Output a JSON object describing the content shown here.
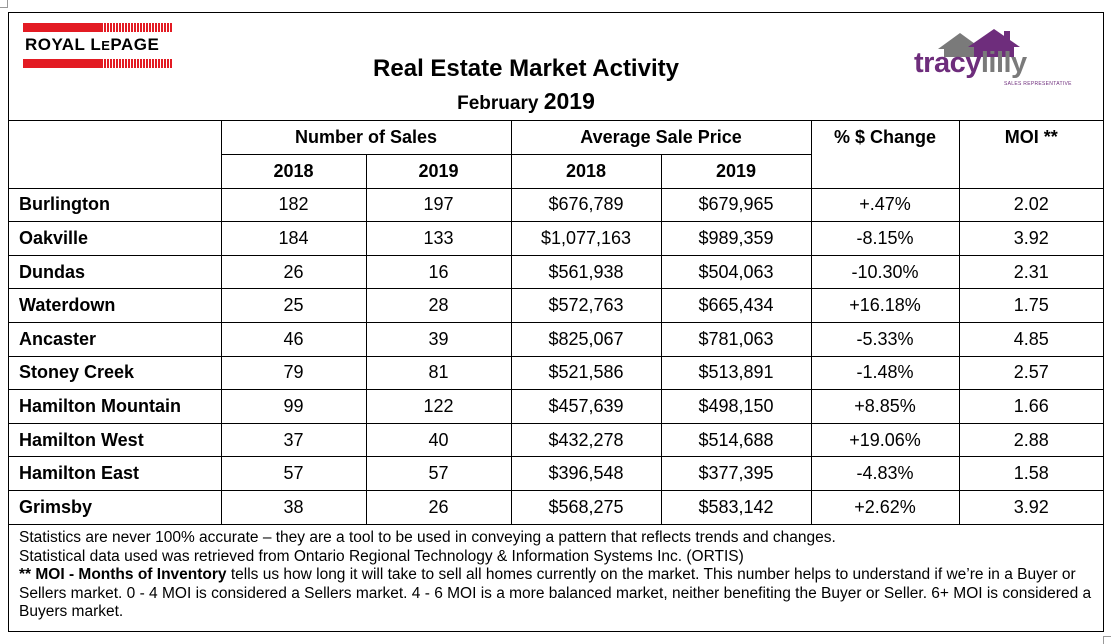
{
  "header": {
    "brand_left": {
      "name_main": "ROYAL L",
      "name_small": "E",
      "name_end": "PAGE"
    },
    "title": "Real Estate Market Activity",
    "subtitle_month": "February",
    "subtitle_year": "2019",
    "brand_right": {
      "part1": "tracy",
      "part2": "lilly",
      "tagline": "SALES REPRESENTATIVE"
    }
  },
  "table": {
    "group_headers": [
      "Number of Sales",
      "Average Sale Price",
      "% $ Change",
      "MOI **"
    ],
    "year_headers": [
      "2018",
      "2019",
      "2018",
      "2019"
    ],
    "rows": [
      {
        "city": "Burlington",
        "sales_2018": "182",
        "sales_2019": "197",
        "price_2018": "$676,789",
        "price_2019": "$679,965",
        "change": "+.47%",
        "moi": "2.02"
      },
      {
        "city": "Oakville",
        "sales_2018": "184",
        "sales_2019": "133",
        "price_2018": "$1,077,163",
        "price_2019": "$989,359",
        "change": "-8.15%",
        "moi": "3.92"
      },
      {
        "city": "Dundas",
        "sales_2018": "26",
        "sales_2019": "16",
        "price_2018": "$561,938",
        "price_2019": "$504,063",
        "change": "-10.30%",
        "moi": "2.31"
      },
      {
        "city": "Waterdown",
        "sales_2018": "25",
        "sales_2019": "28",
        "price_2018": "$572,763",
        "price_2019": "$665,434",
        "change": "+16.18%",
        "moi": "1.75"
      },
      {
        "city": "Ancaster",
        "sales_2018": "46",
        "sales_2019": "39",
        "price_2018": "$825,067",
        "price_2019": "$781,063",
        "change": "-5.33%",
        "moi": "4.85"
      },
      {
        "city": "Stoney Creek",
        "sales_2018": "79",
        "sales_2019": "81",
        "price_2018": "$521,586",
        "price_2019": "$513,891",
        "change": "-1.48%",
        "moi": "2.57"
      },
      {
        "city": "Hamilton Mountain",
        "sales_2018": "99",
        "sales_2019": "122",
        "price_2018": "$457,639",
        "price_2019": "$498,150",
        "change": "+8.85%",
        "moi": "1.66"
      },
      {
        "city": "Hamilton West",
        "sales_2018": "37",
        "sales_2019": "40",
        "price_2018": "$432,278",
        "price_2019": "$514,688",
        "change": "+19.06%",
        "moi": "2.88"
      },
      {
        "city": "Hamilton East",
        "sales_2018": "57",
        "sales_2019": "57",
        "price_2018": "$396,548",
        "price_2019": "$377,395",
        "change": "-4.83%",
        "moi": "1.58"
      },
      {
        "city": "Grimsby",
        "sales_2018": "38",
        "sales_2019": "26",
        "price_2018": "$568,275",
        "price_2019": "$583,142",
        "change": "+2.62%",
        "moi": "3.92"
      }
    ]
  },
  "footer": {
    "line1": "Statistics are never 100% accurate – they are a tool to be used in conveying a pattern that reflects trends and changes.",
    "line2": "Statistical data used was retrieved from Ontario Regional Technology & Information Systems Inc. (ORTIS)",
    "moi_label": "** MOI - Months of Inventory",
    "moi_text": " tells us how long it will take to sell all homes currently on the market. This number helps to understand if we’re in a Buyer or Sellers market. 0 - 4 MOI is considered a Sellers market. 4 - 6 MOI is a more balanced market, neither benefiting the Buyer or Seller. 6+ MOI is considered a Buyers market."
  }
}
